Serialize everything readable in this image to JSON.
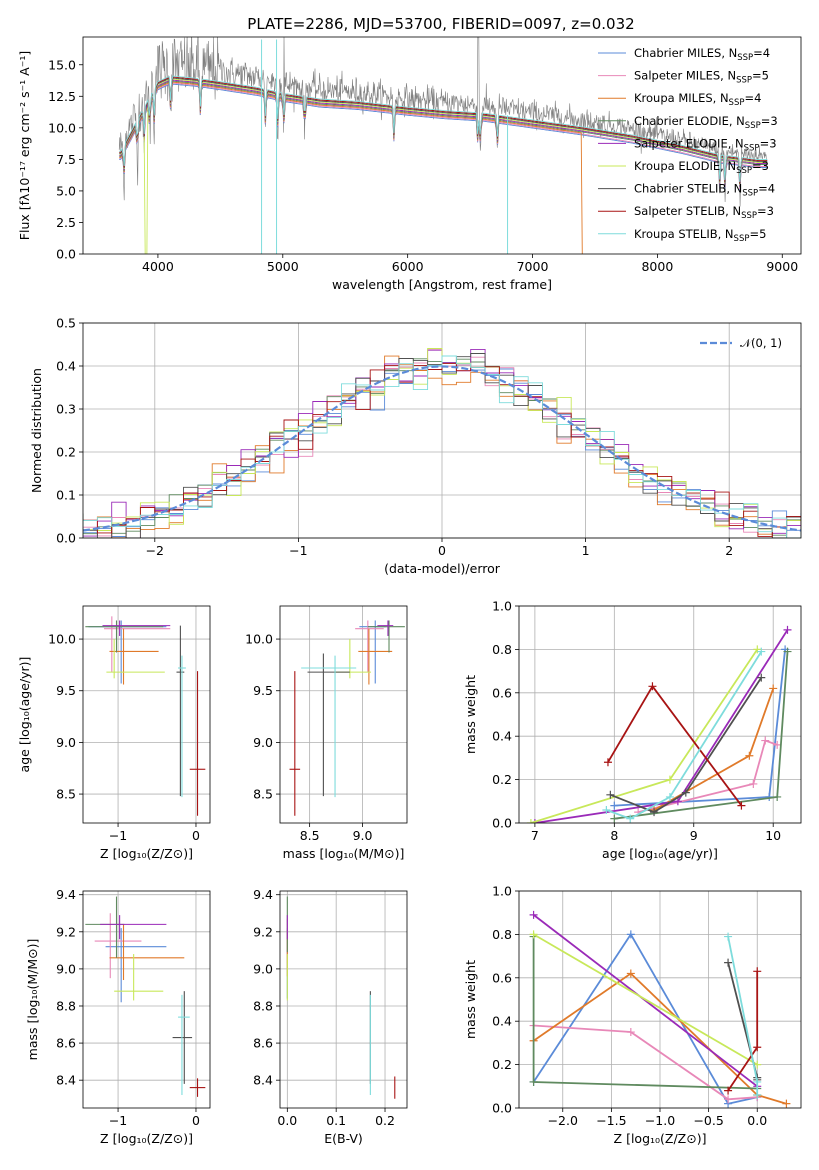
{
  "figure": {
    "title": "PLATE=2286, MJD=53700, FIBERID=0097, z=0.032"
  },
  "colors": {
    "chabrier_miles": "#5b8bd8",
    "salpeter_miles": "#e888b8",
    "kroupa_miles": "#e07a2a",
    "chabrier_elodie": "#5f8a5f",
    "salpeter_elodie": "#9a2ab8",
    "kroupa_elodie": "#c8e85a",
    "chabrier_stelib": "#505050",
    "salpeter_stelib": "#a81414",
    "kroupa_stelib": "#7edcdc",
    "data": "#808080",
    "gaussian": "#5b8bd8"
  },
  "chart_data": [
    {
      "id": "spectrum",
      "type": "line",
      "xlabel": "wavelength [Angstrom, rest frame]",
      "ylabel": "Flux [fλ10⁻¹⁷ erg cm⁻² s⁻¹ A⁻¹]",
      "xlim": [
        3400,
        9150
      ],
      "ylim": [
        0,
        17.2
      ],
      "xticks": [
        "4000",
        "5000",
        "6000",
        "7000",
        "8000",
        "9000"
      ],
      "yticks": [
        "0.0",
        "2.5",
        "5.0",
        "7.5",
        "10.0",
        "12.5",
        "15.0"
      ],
      "grid": false,
      "legend_position": "top-right",
      "continuum": {
        "x": [
          3700,
          3800,
          3900,
          4000,
          4100,
          4300,
          4500,
          4800,
          5000,
          5300,
          5600,
          6000,
          6300,
          6600,
          7000,
          7400,
          7800,
          8200,
          8500,
          8800
        ],
        "y": [
          8.5,
          10.5,
          12.5,
          14.5,
          15.0,
          14.8,
          14.5,
          14.0,
          13.5,
          13.0,
          12.8,
          12.3,
          12.0,
          11.8,
          11.2,
          10.6,
          9.9,
          9.0,
          8.2,
          7.8
        ]
      },
      "legend": [
        "Chabrier MILES, N_SSP=4",
        "Salpeter MILES, N_SSP=5",
        "Kroupa MILES, N_SSP=4",
        "Chabrier ELODIE, N_SSP=3",
        "Salpeter ELODIE, N_SSP=3",
        "Kroupa ELODIE, N_SSP=3",
        "Chabrier STELIB, N_SSP=4",
        "Salpeter STELIB, N_SSP=3",
        "Kroupa STELIB, N_SSP=5"
      ]
    },
    {
      "id": "residuals",
      "type": "line",
      "xlabel": "(data-model)/error",
      "ylabel": "Normed distribution",
      "xlim": [
        -2.5,
        2.5
      ],
      "ylim": [
        0,
        0.5
      ],
      "xticks": [
        "−2",
        "−1",
        "0",
        "1",
        "2"
      ],
      "yticks": [
        "0.0",
        "0.1",
        "0.2",
        "0.3",
        "0.4",
        "0.5"
      ],
      "grid": true,
      "bin_width": 0.1,
      "legend": [
        "𝒩(0, 1)"
      ],
      "legend_position": "top-right",
      "gaussian_mean": 0,
      "gaussian_sigma": 1
    },
    {
      "id": "age-vs-Z",
      "type": "scatter",
      "xlabel": "Z [log₁₀(Z/Z⊙)]",
      "ylabel": "age  [log₁₀(age/yr)]",
      "xlim": [
        -1.45,
        0.18
      ],
      "ylim": [
        8.22,
        10.32
      ],
      "xticks": [
        "−1",
        "0"
      ],
      "yticks": [
        "8.5",
        "9.0",
        "9.5",
        "10.0"
      ],
      "grid": true,
      "points": [
        {
          "series": "chabrier_miles",
          "x": -0.96,
          "y": 10.12,
          "xerr": [
            0.42,
            0.58
          ],
          "yerr": [
            0.55,
            0.06
          ]
        },
        {
          "series": "salpeter_miles",
          "x": -1.08,
          "y": 10.1,
          "xerr": [
            0.1,
            0.75
          ],
          "yerr": [
            0.42,
            0.12
          ]
        },
        {
          "series": "kroupa_miles",
          "x": -0.93,
          "y": 9.88,
          "xerr": [
            0.18,
            0.45
          ],
          "yerr": [
            0.32,
            0.22
          ]
        },
        {
          "series": "chabrier_elodie",
          "x": -1.02,
          "y": 10.12,
          "xerr": [
            0.4,
            0.6
          ],
          "yerr": [
            0.25,
            0.06
          ]
        },
        {
          "series": "salpeter_elodie",
          "x": -0.98,
          "y": 10.13,
          "xerr": [
            0.22,
            0.65
          ],
          "yerr": [
            0.1,
            0.05
          ]
        },
        {
          "series": "kroupa_elodie",
          "x": -1.05,
          "y": 9.68,
          "xerr": [
            0.1,
            0.65
          ],
          "yerr": [
            0.06,
            0.32
          ]
        },
        {
          "series": "chabrier_stelib",
          "x": -0.2,
          "y": 9.68,
          "xerr": [
            0.05,
            0.05
          ],
          "yerr": [
            1.2,
            0.45
          ]
        },
        {
          "series": "salpeter_stelib",
          "x": 0.02,
          "y": 8.74,
          "xerr": [
            0.1,
            0.1
          ],
          "yerr": [
            0.45,
            0.95
          ]
        },
        {
          "series": "kroupa_stelib",
          "x": -0.18,
          "y": 9.72,
          "xerr": [
            0.05,
            0.05
          ],
          "yerr": [
            1.25,
            0.12
          ]
        }
      ]
    },
    {
      "id": "age-vs-mass",
      "type": "scatter",
      "xlabel": "mass [log₁₀(M/M⊙)]",
      "ylabel": "",
      "xlim": [
        8.22,
        9.42
      ],
      "ylim": [
        8.22,
        10.32
      ],
      "xticks": [
        "8.5",
        "9.0"
      ],
      "yticks": [
        "8.5",
        "9.0",
        "9.5",
        "10.0"
      ],
      "grid": true,
      "points": [
        {
          "series": "chabrier_miles",
          "x": 9.12,
          "y": 10.12,
          "xerr": [
            0.15,
            0.1
          ],
          "yerr": [
            0.55,
            0.06
          ]
        },
        {
          "series": "salpeter_miles",
          "x": 9.05,
          "y": 10.1,
          "xerr": [
            0.12,
            0.15
          ],
          "yerr": [
            0.42,
            0.08
          ]
        },
        {
          "series": "kroupa_miles",
          "x": 9.06,
          "y": 9.88,
          "xerr": [
            0.1,
            0.22
          ],
          "yerr": [
            0.32,
            0.22
          ]
        },
        {
          "series": "chabrier_elodie",
          "x": 9.25,
          "y": 10.12,
          "xerr": [
            0.2,
            0.15
          ],
          "yerr": [
            0.25,
            0.06
          ]
        },
        {
          "series": "salpeter_elodie",
          "x": 9.24,
          "y": 10.13,
          "xerr": [
            0.1,
            0.05
          ],
          "yerr": [
            0.1,
            0.05
          ]
        },
        {
          "series": "kroupa_elodie",
          "x": 8.88,
          "y": 9.68,
          "xerr": [
            0.15,
            0.2
          ],
          "yerr": [
            0.06,
            0.32
          ]
        },
        {
          "series": "chabrier_stelib",
          "x": 8.63,
          "y": 9.68,
          "xerr": [
            0.15,
            0.25
          ],
          "yerr": [
            1.2,
            0.18
          ]
        },
        {
          "series": "salpeter_stelib",
          "x": 8.36,
          "y": 8.74,
          "xerr": [
            0.05,
            0.05
          ],
          "yerr": [
            0.45,
            0.95
          ]
        },
        {
          "series": "kroupa_stelib",
          "x": 8.74,
          "y": 9.72,
          "xerr": [
            0.32,
            0.2
          ],
          "yerr": [
            1.25,
            0.12
          ]
        }
      ]
    },
    {
      "id": "weight-vs-age",
      "type": "line",
      "xlabel": "age  [log₁₀(age/yr)]",
      "ylabel": "mass weight",
      "xlim": [
        6.8,
        10.35
      ],
      "ylim": [
        0,
        1.0
      ],
      "xticks": [
        "7",
        "8",
        "9",
        "10"
      ],
      "yticks": [
        "0.0",
        "0.2",
        "0.4",
        "0.6",
        "0.8",
        "1.0"
      ],
      "grid": true,
      "series": [
        {
          "key": "chabrier_miles",
          "x": [
            8.0,
            9.95,
            10.15
          ],
          "y": [
            0.08,
            0.12,
            0.8
          ]
        },
        {
          "key": "salpeter_miles",
          "x": [
            8.3,
            9.75,
            9.9,
            10.05
          ],
          "y": [
            0.05,
            0.18,
            0.38,
            0.36
          ]
        },
        {
          "key": "kroupa_miles",
          "x": [
            8.5,
            9.7,
            10.0
          ],
          "y": [
            0.06,
            0.31,
            0.62
          ]
        },
        {
          "key": "chabrier_elodie",
          "x": [
            8.0,
            10.05,
            10.18
          ],
          "y": [
            0.02,
            0.12,
            0.79
          ]
        },
        {
          "key": "salpeter_elodie",
          "x": [
            7.0,
            8.8,
            10.18
          ],
          "y": [
            0.0,
            0.1,
            0.89
          ]
        },
        {
          "key": "kroupa_elodie",
          "x": [
            6.95,
            8.7,
            9.8
          ],
          "y": [
            0.0,
            0.2,
            0.8
          ]
        },
        {
          "key": "chabrier_stelib",
          "x": [
            7.95,
            8.5,
            8.9,
            9.85
          ],
          "y": [
            0.13,
            0.05,
            0.14,
            0.67
          ]
        },
        {
          "key": "salpeter_stelib",
          "x": [
            7.92,
            8.48,
            9.6
          ],
          "y": [
            0.28,
            0.63,
            0.08
          ]
        },
        {
          "key": "kroupa_stelib",
          "x": [
            7.9,
            8.2,
            8.7,
            9.85
          ],
          "y": [
            0.06,
            0.02,
            0.12,
            0.79
          ]
        }
      ]
    },
    {
      "id": "mass-vs-Z",
      "type": "scatter",
      "xlabel": "Z [log₁₀(Z/Z⊙)]",
      "ylabel": "mass [log₁₀(M/M⊙)]",
      "xlim": [
        -1.45,
        0.18
      ],
      "ylim": [
        8.25,
        9.42
      ],
      "xticks": [
        "−1",
        "0"
      ],
      "yticks": [
        "8.4",
        "8.6",
        "8.8",
        "9.0",
        "9.2",
        "9.4"
      ],
      "grid": true,
      "points": [
        {
          "series": "chabrier_miles",
          "x": -0.96,
          "y": 9.12,
          "xerr": [
            0.2,
            0.58
          ],
          "yerr": [
            0.3,
            0.1
          ]
        },
        {
          "series": "salpeter_miles",
          "x": -1.1,
          "y": 9.15,
          "xerr": [
            0.2,
            0.4
          ],
          "yerr": [
            0.2,
            0.15
          ]
        },
        {
          "series": "kroupa_miles",
          "x": -0.93,
          "y": 9.06,
          "xerr": [
            0.18,
            0.78
          ],
          "yerr": [
            0.12,
            0.18
          ]
        },
        {
          "series": "chabrier_elodie",
          "x": -1.02,
          "y": 9.24,
          "xerr": [
            0.4,
            0.1
          ],
          "yerr": [
            0.18,
            0.15
          ]
        },
        {
          "series": "salpeter_elodie",
          "x": -0.98,
          "y": 9.24,
          "xerr": [
            0.25,
            0.6
          ],
          "yerr": [
            0.08,
            0.05
          ]
        },
        {
          "series": "kroupa_elodie",
          "x": -0.8,
          "y": 8.88,
          "xerr": [
            0.25,
            0.38
          ],
          "yerr": [
            0.05,
            0.2
          ]
        },
        {
          "series": "chabrier_stelib",
          "x": -0.15,
          "y": 8.63,
          "xerr": [
            0.15,
            0.1
          ],
          "yerr": [
            0.25,
            0.25
          ]
        },
        {
          "series": "salpeter_stelib",
          "x": 0.02,
          "y": 8.36,
          "xerr": [
            0.1,
            0.1
          ],
          "yerr": [
            0.05,
            0.05
          ]
        },
        {
          "series": "kroupa_stelib",
          "x": -0.18,
          "y": 8.74,
          "xerr": [
            0.05,
            0.1
          ],
          "yerr": [
            0.42,
            0.12
          ]
        }
      ]
    },
    {
      "id": "mass-vs-ebv",
      "type": "scatter",
      "xlabel": "E(B-V)",
      "ylabel": "",
      "xlim": [
        -0.015,
        0.245
      ],
      "ylim": [
        8.25,
        9.42
      ],
      "xticks": [
        "0.0",
        "0.1",
        "0.2"
      ],
      "yticks": [
        "8.4",
        "8.6",
        "8.8",
        "9.0",
        "9.2",
        "9.4"
      ],
      "grid": true,
      "points": [
        {
          "series": "chabrier_miles",
          "x": 0.0,
          "y": 9.12,
          "yerr": [
            0.28,
            0.1
          ]
        },
        {
          "series": "salpeter_miles",
          "x": 0.0,
          "y": 9.15,
          "yerr": [
            0.12,
            0.12
          ]
        },
        {
          "series": "kroupa_miles",
          "x": 0.0,
          "y": 9.06,
          "yerr": [
            0.1,
            0.15
          ]
        },
        {
          "series": "chabrier_elodie",
          "x": 0.0,
          "y": 9.24,
          "yerr": [
            0.15,
            0.15
          ]
        },
        {
          "series": "salpeter_elodie",
          "x": 0.0,
          "y": 9.24,
          "yerr": [
            0.08,
            0.05
          ]
        },
        {
          "series": "kroupa_elodie",
          "x": 0.0,
          "y": 8.88,
          "yerr": [
            0.05,
            0.2
          ]
        },
        {
          "series": "chabrier_stelib",
          "x": 0.17,
          "y": 8.63,
          "yerr": [
            0.25,
            0.25
          ]
        },
        {
          "series": "salpeter_stelib",
          "x": 0.22,
          "y": 8.36,
          "yerr": [
            0.06,
            0.06
          ]
        },
        {
          "series": "kroupa_stelib",
          "x": 0.17,
          "y": 8.74,
          "yerr": [
            0.42,
            0.12
          ]
        }
      ]
    },
    {
      "id": "weight-vs-Z",
      "type": "line",
      "xlabel": "Z [log₁₀(Z/Z⊙)]",
      "ylabel": "mass weight",
      "xlim": [
        -2.45,
        0.45
      ],
      "ylim": [
        0,
        1.0
      ],
      "xticks": [
        "−2.0",
        "−1.5",
        "−1.0",
        "−0.5",
        "0.0"
      ],
      "yticks": [
        "0.0",
        "0.2",
        "0.4",
        "0.6",
        "0.8",
        "1.0"
      ],
      "grid": true,
      "series": [
        {
          "key": "chabrier_miles",
          "x": [
            -2.3,
            -1.3,
            -0.3,
            0.0
          ],
          "y": [
            0.12,
            0.8,
            0.02,
            0.05
          ]
        },
        {
          "key": "salpeter_miles",
          "x": [
            -2.3,
            -1.3,
            -0.3,
            0.0
          ],
          "y": [
            0.38,
            0.35,
            0.04,
            0.05
          ]
        },
        {
          "key": "kroupa_miles",
          "x": [
            -2.3,
            -1.3,
            0.0,
            0.3
          ],
          "y": [
            0.31,
            0.62,
            0.06,
            0.02
          ]
        },
        {
          "key": "chabrier_elodie",
          "x": [
            -2.3,
            -2.3,
            0.0
          ],
          "y": [
            0.79,
            0.12,
            0.09
          ]
        },
        {
          "key": "salpeter_elodie",
          "x": [
            -2.3,
            0.0
          ],
          "y": [
            0.89,
            0.1
          ]
        },
        {
          "key": "kroupa_elodie",
          "x": [
            -2.3,
            0.0
          ],
          "y": [
            0.8,
            0.2
          ]
        },
        {
          "key": "chabrier_stelib",
          "x": [
            -0.3,
            0.0,
            0.0
          ],
          "y": [
            0.67,
            0.14,
            0.13
          ]
        },
        {
          "key": "salpeter_stelib",
          "x": [
            -0.3,
            0.0,
            0.0
          ],
          "y": [
            0.08,
            0.28,
            0.63
          ]
        },
        {
          "key": "kroupa_stelib",
          "x": [
            -0.3,
            0.0,
            0.0
          ],
          "y": [
            0.79,
            0.12,
            0.06
          ]
        }
      ]
    }
  ]
}
